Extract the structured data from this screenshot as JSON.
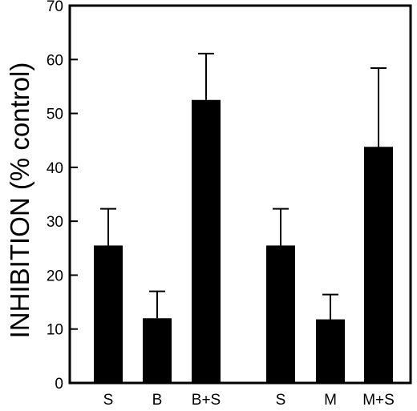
{
  "chart_data": {
    "type": "bar",
    "title": "",
    "xlabel": "",
    "ylabel": "INHIBITION (% control)",
    "ylim": [
      0,
      70
    ],
    "yticks": [
      0,
      10,
      20,
      30,
      40,
      50,
      60,
      70
    ],
    "ytick_labels": [
      "0",
      "10",
      "20",
      "30",
      "40",
      "50",
      "60",
      "70"
    ],
    "grid": false,
    "legend": "none",
    "bar_color": "#000000",
    "groups": [
      {
        "categories": [
          "S",
          "B",
          "B+S"
        ]
      },
      {
        "categories": [
          "S",
          "M",
          "M+S"
        ]
      }
    ],
    "categories": [
      "S",
      "B",
      "B+S",
      "S",
      "M",
      "M+S"
    ],
    "values": [
      25.5,
      12.0,
      52.5,
      25.5,
      11.8,
      43.8
    ],
    "error_upper": [
      6.8,
      5.0,
      8.6,
      6.8,
      4.6,
      14.6
    ]
  }
}
